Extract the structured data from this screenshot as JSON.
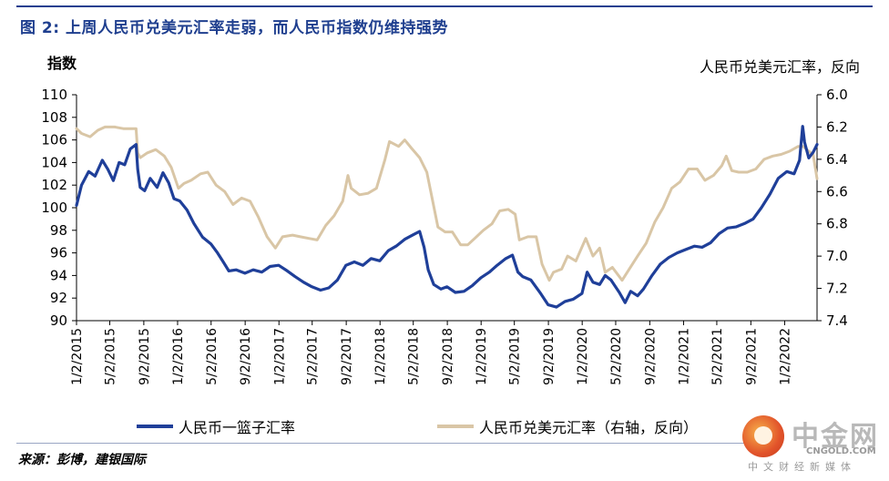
{
  "title": "图 2: 上周人民币兑美元汇率走弱，而人民币指数仍维持强势",
  "source": "来源：彭博，建银国际",
  "logo": {
    "name": "中金网",
    "url": "CNGOLD.COM",
    "tagline": "中文财经新媒体"
  },
  "chart_data": {
    "type": "line",
    "ylabel": "指数",
    "ylabel_right": "人民币兑美元汇率，反向",
    "ylim": [
      90,
      110
    ],
    "y_ticks": [
      110,
      108,
      106,
      104,
      102,
      100,
      98,
      96,
      94,
      92,
      90
    ],
    "ylim_right": [
      6.0,
      7.4
    ],
    "y_right_inverted": true,
    "y_right_ticks": [
      "6.0",
      "6.2",
      "6.4",
      "6.6",
      "6.8",
      "7.0",
      "7.2",
      "7.4"
    ],
    "x_ticks": [
      "1/2/2015",
      "5/2/2015",
      "9/2/2015",
      "1/2/2016",
      "5/2/2016",
      "9/2/2016",
      "1/2/2017",
      "5/2/2017",
      "9/2/2017",
      "1/2/2018",
      "5/2/2018",
      "9/2/2018",
      "1/2/2019",
      "5/2/2019",
      "9/2/2019",
      "1/2/2020",
      "5/2/2020",
      "9/2/2020",
      "1/2/2021",
      "5/2/2021",
      "9/2/2021",
      "1/2/2022"
    ],
    "x_range": [
      "2015-01-02",
      "2022-04-29"
    ],
    "grid": false,
    "legend_position": "bottom",
    "series": [
      {
        "name": "人民币一篮子汇率",
        "axis": "left",
        "color": "#1f3f99",
        "points": [
          [
            "2015-01-02",
            100.2
          ],
          [
            "2015-01-20",
            102.0
          ],
          [
            "2015-02-15",
            103.2
          ],
          [
            "2015-03-10",
            102.8
          ],
          [
            "2015-04-05",
            104.2
          ],
          [
            "2015-04-25",
            103.4
          ],
          [
            "2015-05-15",
            102.4
          ],
          [
            "2015-06-05",
            104.0
          ],
          [
            "2015-06-25",
            103.8
          ],
          [
            "2015-07-15",
            105.2
          ],
          [
            "2015-08-05",
            105.6
          ],
          [
            "2015-08-11",
            103.4
          ],
          [
            "2015-08-20",
            101.8
          ],
          [
            "2015-09-05",
            101.5
          ],
          [
            "2015-09-25",
            102.6
          ],
          [
            "2015-10-20",
            101.8
          ],
          [
            "2015-11-10",
            103.1
          ],
          [
            "2015-12-01",
            102.2
          ],
          [
            "2015-12-20",
            100.8
          ],
          [
            "2016-01-10",
            100.6
          ],
          [
            "2016-02-05",
            99.8
          ],
          [
            "2016-03-01",
            98.6
          ],
          [
            "2016-04-01",
            97.4
          ],
          [
            "2016-05-01",
            96.8
          ],
          [
            "2016-05-25",
            96.0
          ],
          [
            "2016-06-15",
            95.2
          ],
          [
            "2016-07-05",
            94.4
          ],
          [
            "2016-08-01",
            94.5
          ],
          [
            "2016-09-01",
            94.2
          ],
          [
            "2016-10-01",
            94.5
          ],
          [
            "2016-11-01",
            94.3
          ],
          [
            "2016-12-01",
            94.8
          ],
          [
            "2017-01-01",
            94.9
          ],
          [
            "2017-02-01",
            94.4
          ],
          [
            "2017-03-01",
            93.9
          ],
          [
            "2017-04-01",
            93.4
          ],
          [
            "2017-05-01",
            93.0
          ],
          [
            "2017-06-01",
            92.7
          ],
          [
            "2017-07-01",
            92.9
          ],
          [
            "2017-08-01",
            93.6
          ],
          [
            "2017-09-01",
            94.9
          ],
          [
            "2017-10-01",
            95.2
          ],
          [
            "2017-11-01",
            94.9
          ],
          [
            "2017-12-01",
            95.5
          ],
          [
            "2018-01-01",
            95.3
          ],
          [
            "2018-02-01",
            96.2
          ],
          [
            "2018-03-01",
            96.6
          ],
          [
            "2018-04-01",
            97.2
          ],
          [
            "2018-05-01",
            97.6
          ],
          [
            "2018-05-25",
            97.9
          ],
          [
            "2018-06-10",
            96.5
          ],
          [
            "2018-06-25",
            94.5
          ],
          [
            "2018-07-15",
            93.2
          ],
          [
            "2018-08-10",
            92.8
          ],
          [
            "2018-09-01",
            93.0
          ],
          [
            "2018-10-01",
            92.5
          ],
          [
            "2018-11-01",
            92.6
          ],
          [
            "2018-12-01",
            93.1
          ],
          [
            "2019-01-01",
            93.8
          ],
          [
            "2019-02-01",
            94.3
          ],
          [
            "2019-03-01",
            94.9
          ],
          [
            "2019-04-01",
            95.5
          ],
          [
            "2019-04-25",
            95.8
          ],
          [
            "2019-05-15",
            94.3
          ],
          [
            "2019-06-01",
            93.9
          ],
          [
            "2019-07-01",
            93.6
          ],
          [
            "2019-08-05",
            92.4
          ],
          [
            "2019-09-01",
            91.4
          ],
          [
            "2019-10-01",
            91.2
          ],
          [
            "2019-11-01",
            91.7
          ],
          [
            "2019-12-01",
            91.9
          ],
          [
            "2020-01-01",
            92.4
          ],
          [
            "2020-01-20",
            94.3
          ],
          [
            "2020-02-10",
            93.4
          ],
          [
            "2020-03-05",
            93.2
          ],
          [
            "2020-03-25",
            94.0
          ],
          [
            "2020-04-15",
            93.6
          ],
          [
            "2020-05-15",
            92.5
          ],
          [
            "2020-06-05",
            91.6
          ],
          [
            "2020-06-25",
            92.6
          ],
          [
            "2020-07-20",
            92.2
          ],
          [
            "2020-08-10",
            92.8
          ],
          [
            "2020-09-10",
            94.0
          ],
          [
            "2020-10-10",
            95.0
          ],
          [
            "2020-11-10",
            95.6
          ],
          [
            "2020-12-10",
            96.0
          ],
          [
            "2021-01-10",
            96.3
          ],
          [
            "2021-02-10",
            96.6
          ],
          [
            "2021-03-10",
            96.5
          ],
          [
            "2021-04-10",
            96.9
          ],
          [
            "2021-05-10",
            97.7
          ],
          [
            "2021-06-10",
            98.2
          ],
          [
            "2021-07-10",
            98.3
          ],
          [
            "2021-08-10",
            98.6
          ],
          [
            "2021-09-10",
            99.0
          ],
          [
            "2021-10-10",
            100.0
          ],
          [
            "2021-11-10",
            101.2
          ],
          [
            "2021-12-10",
            102.6
          ],
          [
            "2022-01-10",
            103.2
          ],
          [
            "2022-02-05",
            103.0
          ],
          [
            "2022-02-25",
            104.2
          ],
          [
            "2022-03-08",
            107.2
          ],
          [
            "2022-03-15",
            105.8
          ],
          [
            "2022-03-30",
            104.4
          ],
          [
            "2022-04-15",
            104.9
          ],
          [
            "2022-04-29",
            105.6
          ]
        ]
      },
      {
        "name": "人民币兑美元汇率（右轴，反向）",
        "axis": "right",
        "color": "#d9c6a6",
        "points": [
          [
            "2015-01-02",
            6.21
          ],
          [
            "2015-01-20",
            6.24
          ],
          [
            "2015-02-20",
            6.26
          ],
          [
            "2015-03-20",
            6.22
          ],
          [
            "2015-04-15",
            6.2
          ],
          [
            "2015-05-20",
            6.2
          ],
          [
            "2015-06-20",
            6.21
          ],
          [
            "2015-08-05",
            6.21
          ],
          [
            "2015-08-11",
            6.36
          ],
          [
            "2015-08-20",
            6.39
          ],
          [
            "2015-09-15",
            6.36
          ],
          [
            "2015-10-15",
            6.34
          ],
          [
            "2015-11-15",
            6.38
          ],
          [
            "2015-12-10",
            6.45
          ],
          [
            "2016-01-05",
            6.58
          ],
          [
            "2016-01-25",
            6.55
          ],
          [
            "2016-02-20",
            6.53
          ],
          [
            "2016-03-25",
            6.49
          ],
          [
            "2016-04-20",
            6.48
          ],
          [
            "2016-05-20",
            6.56
          ],
          [
            "2016-06-20",
            6.6
          ],
          [
            "2016-07-20",
            6.68
          ],
          [
            "2016-08-20",
            6.64
          ],
          [
            "2016-09-20",
            6.66
          ],
          [
            "2016-10-20",
            6.76
          ],
          [
            "2016-11-20",
            6.88
          ],
          [
            "2016-12-20",
            6.95
          ],
          [
            "2017-01-15",
            6.88
          ],
          [
            "2017-02-20",
            6.87
          ],
          [
            "2017-03-20",
            6.88
          ],
          [
            "2017-04-20",
            6.89
          ],
          [
            "2017-05-20",
            6.9
          ],
          [
            "2017-06-20",
            6.81
          ],
          [
            "2017-07-20",
            6.75
          ],
          [
            "2017-08-20",
            6.66
          ],
          [
            "2017-09-08",
            6.5
          ],
          [
            "2017-09-20",
            6.58
          ],
          [
            "2017-10-20",
            6.62
          ],
          [
            "2017-11-20",
            6.61
          ],
          [
            "2017-12-20",
            6.58
          ],
          [
            "2018-01-20",
            6.4
          ],
          [
            "2018-02-05",
            6.29
          ],
          [
            "2018-03-10",
            6.32
          ],
          [
            "2018-04-01",
            6.28
          ],
          [
            "2018-04-25",
            6.33
          ],
          [
            "2018-05-25",
            6.39
          ],
          [
            "2018-06-20",
            6.48
          ],
          [
            "2018-07-10",
            6.65
          ],
          [
            "2018-07-30",
            6.82
          ],
          [
            "2018-08-25",
            6.85
          ],
          [
            "2018-09-20",
            6.85
          ],
          [
            "2018-10-20",
            6.93
          ],
          [
            "2018-11-15",
            6.93
          ],
          [
            "2018-12-10",
            6.89
          ],
          [
            "2019-01-10",
            6.84
          ],
          [
            "2019-02-10",
            6.8
          ],
          [
            "2019-03-10",
            6.72
          ],
          [
            "2019-04-10",
            6.71
          ],
          [
            "2019-05-05",
            6.74
          ],
          [
            "2019-05-20",
            6.9
          ],
          [
            "2019-06-20",
            6.88
          ],
          [
            "2019-07-20",
            6.88
          ],
          [
            "2019-08-10",
            7.05
          ],
          [
            "2019-09-05",
            7.15
          ],
          [
            "2019-09-20",
            7.1
          ],
          [
            "2019-10-20",
            7.08
          ],
          [
            "2019-11-10",
            7.0
          ],
          [
            "2019-12-10",
            7.03
          ],
          [
            "2020-01-15",
            6.89
          ],
          [
            "2020-02-10",
            7.0
          ],
          [
            "2020-03-05",
            6.95
          ],
          [
            "2020-03-25",
            7.1
          ],
          [
            "2020-04-20",
            7.07
          ],
          [
            "2020-05-25",
            7.15
          ],
          [
            "2020-06-20",
            7.08
          ],
          [
            "2020-07-20",
            7.0
          ],
          [
            "2020-08-20",
            6.92
          ],
          [
            "2020-09-20",
            6.79
          ],
          [
            "2020-10-20",
            6.7
          ],
          [
            "2020-11-20",
            6.58
          ],
          [
            "2020-12-20",
            6.54
          ],
          [
            "2021-01-20",
            6.46
          ],
          [
            "2021-02-20",
            6.46
          ],
          [
            "2021-03-20",
            6.53
          ],
          [
            "2021-04-20",
            6.5
          ],
          [
            "2021-05-20",
            6.44
          ],
          [
            "2021-06-05",
            6.38
          ],
          [
            "2021-06-25",
            6.47
          ],
          [
            "2021-07-20",
            6.48
          ],
          [
            "2021-08-20",
            6.48
          ],
          [
            "2021-09-20",
            6.46
          ],
          [
            "2021-10-20",
            6.4
          ],
          [
            "2021-11-20",
            6.38
          ],
          [
            "2021-12-20",
            6.37
          ],
          [
            "2022-01-20",
            6.35
          ],
          [
            "2022-02-20",
            6.32
          ],
          [
            "2022-03-10",
            6.32
          ],
          [
            "2022-03-30",
            6.35
          ],
          [
            "2022-04-15",
            6.37
          ],
          [
            "2022-04-29",
            6.52
          ]
        ]
      }
    ]
  }
}
